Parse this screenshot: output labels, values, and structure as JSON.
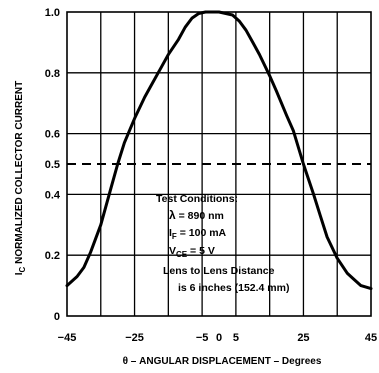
{
  "chart_data": {
    "type": "line",
    "title": "",
    "xlabel": "θ – ANGULAR DISPLACEMENT – Degrees",
    "ylabel_prefix": "I",
    "ylabel_sub": "C",
    "ylabel_rest": " NORMALIZED COLLECTOR CURRENT",
    "xlim": [
      -45,
      45
    ],
    "ylim": [
      0,
      1.0
    ],
    "x_ticks": [
      -45,
      -25,
      -5,
      0,
      5,
      25,
      45
    ],
    "x_tick_labels": [
      "−45",
      "−25",
      "−5",
      "0",
      "5",
      "25",
      "45"
    ],
    "x_gridlines": [
      -35,
      -25,
      -15,
      -5,
      5,
      15,
      25,
      35
    ],
    "y_ticks": [
      0,
      0.2,
      0.4,
      0.5,
      0.6,
      0.8,
      1.0
    ],
    "y_tick_labels": [
      "0",
      "0.2",
      "0.4",
      "0.5",
      "0.6",
      "0.8",
      "1.0"
    ],
    "y_gridlines": [
      0.2,
      0.4,
      0.6,
      0.8
    ],
    "reference_line": {
      "y": 0.5,
      "style": "dashed"
    },
    "grid": true,
    "series": [
      {
        "x": [
          -45,
          -42,
          -40,
          -38,
          -35,
          -32,
          -30,
          -28,
          -25,
          -22,
          -20,
          -17,
          -15,
          -12,
          -10,
          -8,
          -6,
          -4,
          -2,
          0,
          2,
          4,
          6,
          8,
          10,
          12,
          15,
          17,
          20,
          22,
          25,
          28,
          30,
          32,
          35,
          38,
          40,
          42,
          45
        ],
        "y": [
          0.1,
          0.13,
          0.16,
          0.21,
          0.3,
          0.42,
          0.5,
          0.57,
          0.65,
          0.72,
          0.76,
          0.82,
          0.86,
          0.91,
          0.95,
          0.98,
          0.995,
          1.0,
          1.0,
          1.0,
          0.995,
          0.99,
          0.97,
          0.94,
          0.9,
          0.86,
          0.79,
          0.74,
          0.66,
          0.61,
          0.5,
          0.4,
          0.33,
          0.26,
          0.19,
          0.14,
          0.12,
          0.1,
          0.09
        ]
      }
    ],
    "annotation": {
      "heading": "Test Conditions:",
      "lines": [
        "λ = 890 nm",
        "IF = 100 mA",
        "VCE = 5 V",
        "Lens to Lens Distance",
        "is 6 inches (152.4 mm)"
      ],
      "lambda_sym": "λ",
      "lambda_val": " = 890 nm",
      "if_main": "I",
      "if_sub": "F",
      "if_rest": " = 100 mA",
      "vce_main": "V",
      "vce_sub": "CE",
      "vce_rest": " = 5 V",
      "dist1": "Lens to Lens Distance",
      "dist2": "is 6 inches (152.4 mm)"
    }
  }
}
